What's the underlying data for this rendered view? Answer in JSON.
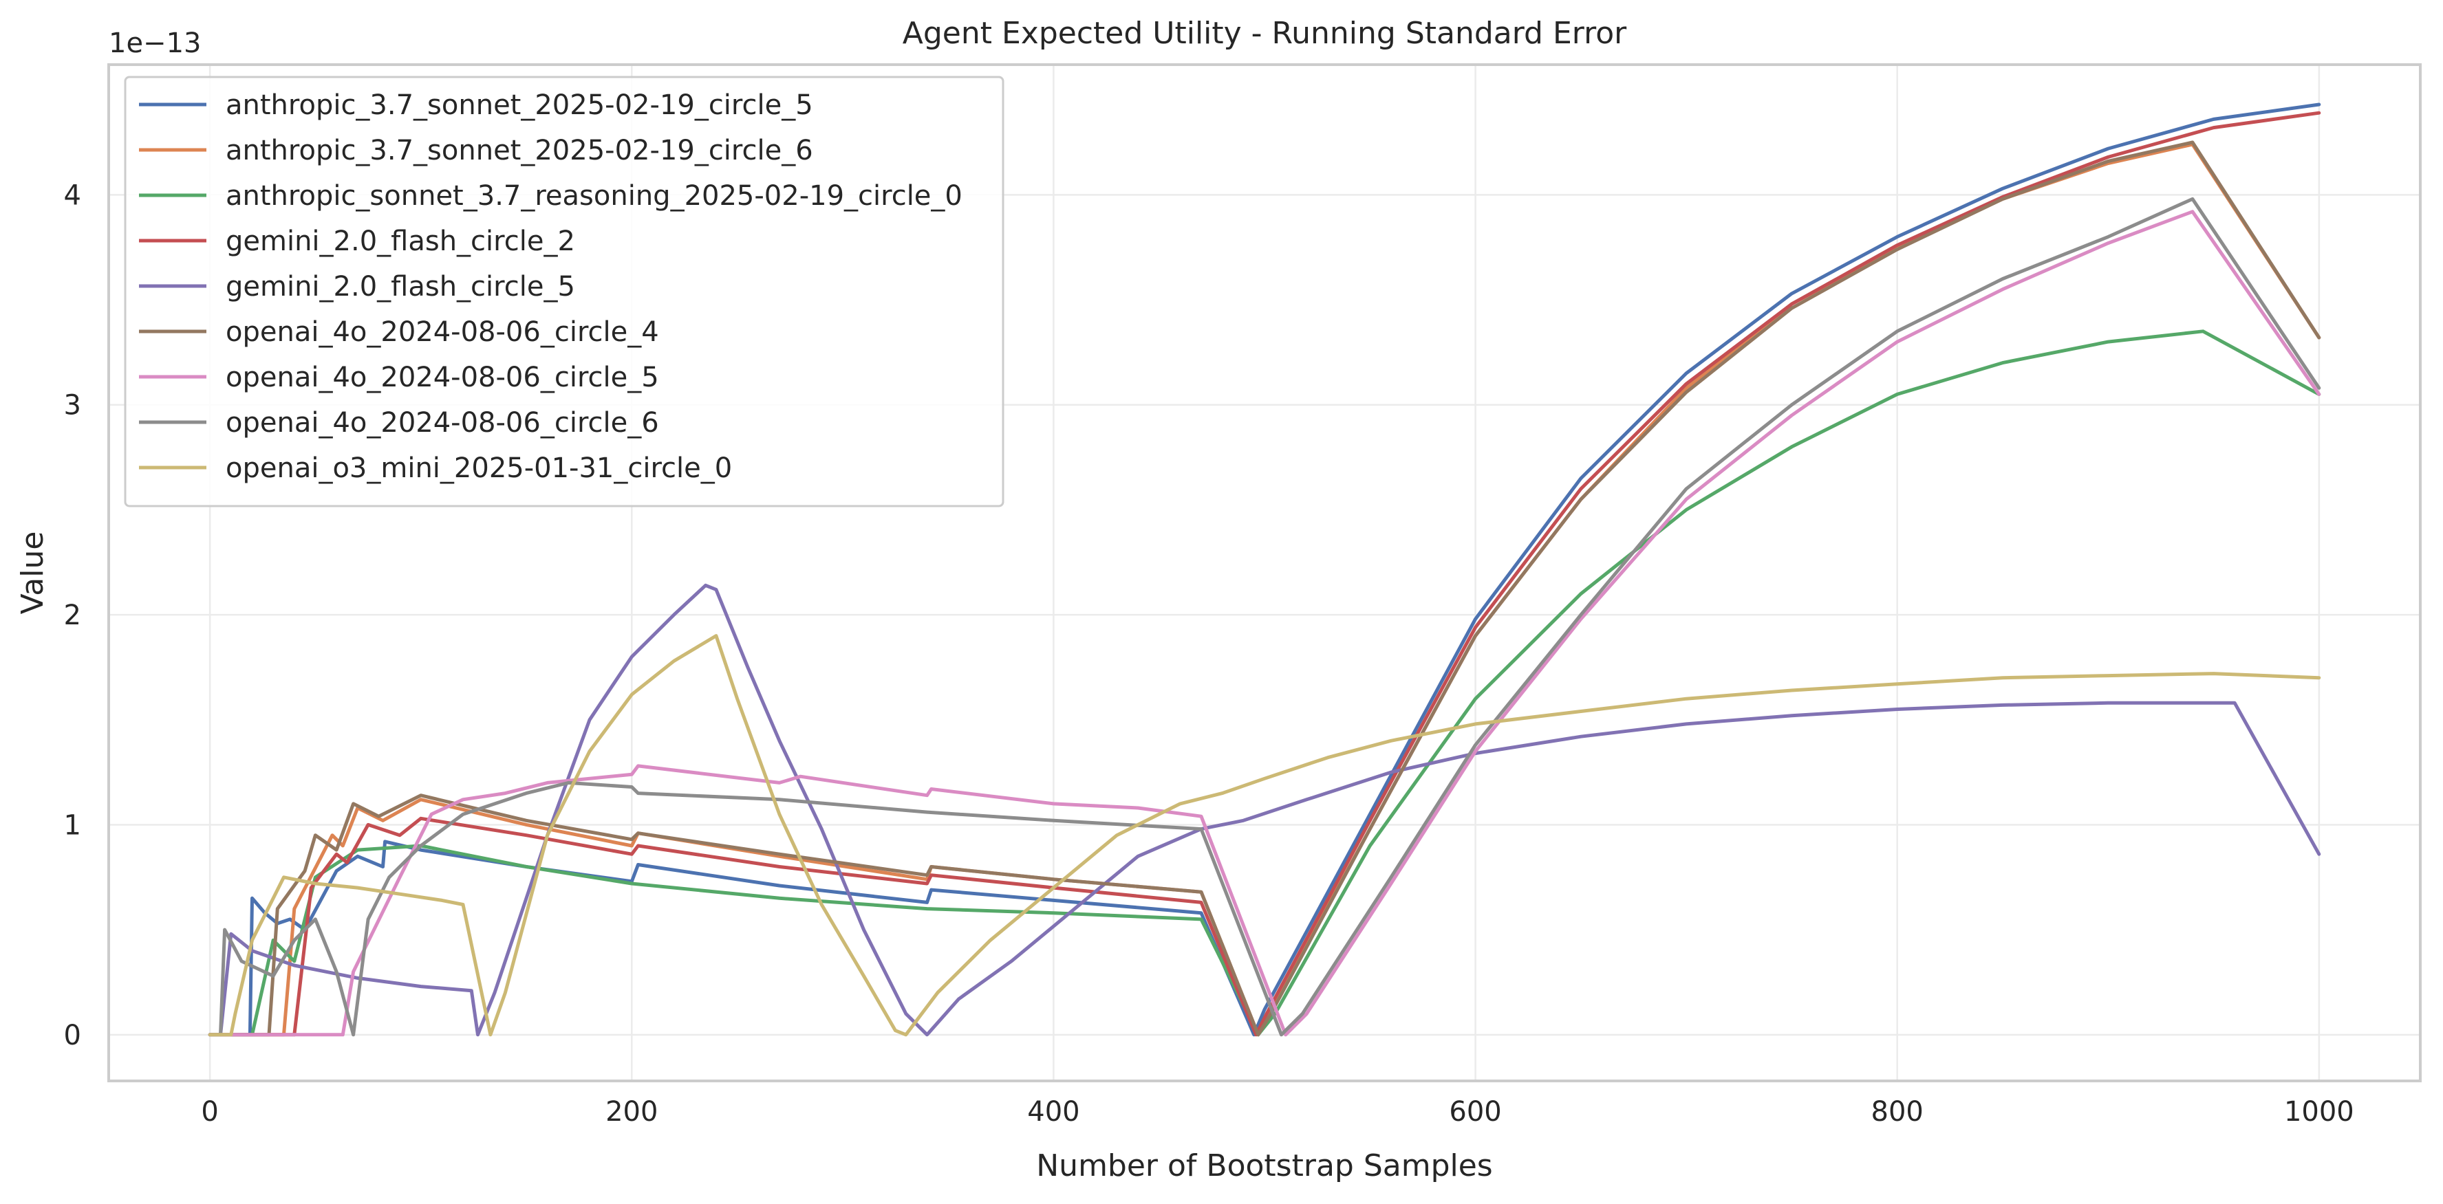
{
  "chart_data": {
    "type": "line",
    "title": "Agent Expected Utility - Running Standard Error",
    "xlabel": "Number of Bootstrap Samples",
    "ylabel": "Value",
    "y_offset_label": "1e−13",
    "xlim": [
      -48,
      1048
    ],
    "ylim": [
      -0.22,
      4.62
    ],
    "x_ticks": [
      0,
      200,
      400,
      600,
      800,
      1000
    ],
    "y_ticks": [
      0,
      1,
      2,
      3,
      4
    ],
    "grid": true,
    "legend_position": "top-left",
    "series": [
      {
        "name": "anthropic_3.7_sonnet_2025-02-19_circle_5",
        "color": "#4c72b0",
        "points": [
          [
            0,
            0
          ],
          [
            19,
            0
          ],
          [
            20,
            0.65
          ],
          [
            26,
            0.58
          ],
          [
            32,
            0.53
          ],
          [
            38,
            0.55
          ],
          [
            45,
            0.5
          ],
          [
            60,
            0.78
          ],
          [
            70,
            0.85
          ],
          [
            82,
            0.8
          ],
          [
            83,
            0.92
          ],
          [
            100,
            0.88
          ],
          [
            150,
            0.8
          ],
          [
            200,
            0.73
          ],
          [
            203,
            0.81
          ],
          [
            270,
            0.71
          ],
          [
            340,
            0.63
          ],
          [
            342,
            0.69
          ],
          [
            400,
            0.64
          ],
          [
            470,
            0.58
          ],
          [
            495,
            0
          ],
          [
            500,
            0.12
          ],
          [
            550,
            1.05
          ],
          [
            600,
            1.98
          ],
          [
            650,
            2.65
          ],
          [
            700,
            3.15
          ],
          [
            750,
            3.53
          ],
          [
            800,
            3.8
          ],
          [
            850,
            4.03
          ],
          [
            900,
            4.22
          ],
          [
            950,
            4.36
          ],
          [
            1000,
            4.43
          ]
        ]
      },
      {
        "name": "anthropic_3.7_sonnet_2025-02-19_circle_6",
        "color": "#dd8452",
        "points": [
          [
            0,
            0
          ],
          [
            35,
            0
          ],
          [
            40,
            0.6
          ],
          [
            58,
            0.95
          ],
          [
            63,
            0.9
          ],
          [
            70,
            1.08
          ],
          [
            82,
            1.02
          ],
          [
            100,
            1.12
          ],
          [
            150,
            1.0
          ],
          [
            200,
            0.9
          ],
          [
            203,
            0.96
          ],
          [
            270,
            0.85
          ],
          [
            340,
            0.74
          ],
          [
            342,
            0.8
          ],
          [
            400,
            0.74
          ],
          [
            470,
            0.68
          ],
          [
            497,
            0
          ],
          [
            502,
            0.1
          ],
          [
            550,
            0.98
          ],
          [
            600,
            1.9
          ],
          [
            650,
            2.55
          ],
          [
            700,
            3.08
          ],
          [
            750,
            3.48
          ],
          [
            800,
            3.75
          ],
          [
            850,
            3.98
          ],
          [
            900,
            4.15
          ],
          [
            940,
            4.24
          ],
          [
            1000,
            3.32
          ]
        ]
      },
      {
        "name": "anthropic_sonnet_3.7_reasoning_2025-02-19_circle_0",
        "color": "#55a868",
        "points": [
          [
            0,
            0
          ],
          [
            20,
            0
          ],
          [
            30,
            0.45
          ],
          [
            40,
            0.35
          ],
          [
            50,
            0.75
          ],
          [
            70,
            0.88
          ],
          [
            100,
            0.9
          ],
          [
            150,
            0.8
          ],
          [
            200,
            0.72
          ],
          [
            270,
            0.65
          ],
          [
            340,
            0.6
          ],
          [
            400,
            0.58
          ],
          [
            470,
            0.55
          ],
          [
            497,
            0
          ],
          [
            505,
            0.1
          ],
          [
            550,
            0.9
          ],
          [
            600,
            1.6
          ],
          [
            650,
            2.1
          ],
          [
            700,
            2.5
          ],
          [
            750,
            2.8
          ],
          [
            800,
            3.05
          ],
          [
            850,
            3.2
          ],
          [
            900,
            3.3
          ],
          [
            945,
            3.35
          ],
          [
            1000,
            3.05
          ]
        ]
      },
      {
        "name": "gemini_2.0_flash_circle_2",
        "color": "#c44e52",
        "points": [
          [
            0,
            0
          ],
          [
            40,
            0
          ],
          [
            48,
            0.7
          ],
          [
            60,
            0.86
          ],
          [
            65,
            0.82
          ],
          [
            75,
            1.0
          ],
          [
            90,
            0.95
          ],
          [
            100,
            1.03
          ],
          [
            150,
            0.95
          ],
          [
            200,
            0.86
          ],
          [
            203,
            0.9
          ],
          [
            270,
            0.8
          ],
          [
            340,
            0.72
          ],
          [
            342,
            0.76
          ],
          [
            400,
            0.7
          ],
          [
            470,
            0.63
          ],
          [
            496,
            0
          ],
          [
            501,
            0.1
          ],
          [
            550,
            1.02
          ],
          [
            600,
            1.94
          ],
          [
            650,
            2.6
          ],
          [
            700,
            3.1
          ],
          [
            750,
            3.48
          ],
          [
            800,
            3.76
          ],
          [
            850,
            3.99
          ],
          [
            900,
            4.18
          ],
          [
            950,
            4.32
          ],
          [
            1000,
            4.39
          ]
        ]
      },
      {
        "name": "gemini_2.0_flash_circle_5",
        "color": "#8172b3",
        "points": [
          [
            0,
            0
          ],
          [
            5,
            0
          ],
          [
            10,
            0.48
          ],
          [
            20,
            0.4
          ],
          [
            40,
            0.33
          ],
          [
            70,
            0.27
          ],
          [
            100,
            0.23
          ],
          [
            124,
            0.21
          ],
          [
            127,
            0
          ],
          [
            135,
            0.2
          ],
          [
            160,
            0.95
          ],
          [
            180,
            1.5
          ],
          [
            200,
            1.8
          ],
          [
            220,
            2.0
          ],
          [
            235,
            2.14
          ],
          [
            240,
            2.12
          ],
          [
            255,
            1.75
          ],
          [
            270,
            1.4
          ],
          [
            290,
            0.98
          ],
          [
            310,
            0.5
          ],
          [
            330,
            0.1
          ],
          [
            340,
            0
          ],
          [
            355,
            0.17
          ],
          [
            380,
            0.35
          ],
          [
            410,
            0.6
          ],
          [
            440,
            0.85
          ],
          [
            470,
            0.98
          ],
          [
            490,
            1.02
          ],
          [
            520,
            1.12
          ],
          [
            560,
            1.25
          ],
          [
            600,
            1.34
          ],
          [
            650,
            1.42
          ],
          [
            700,
            1.48
          ],
          [
            750,
            1.52
          ],
          [
            800,
            1.55
          ],
          [
            850,
            1.57
          ],
          [
            900,
            1.58
          ],
          [
            960,
            1.58
          ],
          [
            1000,
            0.86
          ]
        ]
      },
      {
        "name": "openai_4o_2024-08-06_circle_4",
        "color": "#937860",
        "points": [
          [
            0,
            0
          ],
          [
            28,
            0
          ],
          [
            32,
            0.6
          ],
          [
            45,
            0.78
          ],
          [
            50,
            0.95
          ],
          [
            60,
            0.88
          ],
          [
            68,
            1.1
          ],
          [
            80,
            1.04
          ],
          [
            100,
            1.14
          ],
          [
            150,
            1.02
          ],
          [
            200,
            0.93
          ],
          [
            203,
            0.96
          ],
          [
            270,
            0.86
          ],
          [
            340,
            0.76
          ],
          [
            342,
            0.8
          ],
          [
            400,
            0.74
          ],
          [
            470,
            0.68
          ],
          [
            497,
            0
          ],
          [
            503,
            0.1
          ],
          [
            550,
            0.98
          ],
          [
            600,
            1.9
          ],
          [
            650,
            2.55
          ],
          [
            700,
            3.06
          ],
          [
            750,
            3.46
          ],
          [
            800,
            3.74
          ],
          [
            850,
            3.98
          ],
          [
            900,
            4.16
          ],
          [
            940,
            4.25
          ],
          [
            1000,
            3.32
          ]
        ]
      },
      {
        "name": "openai_4o_2024-08-06_circle_5",
        "color": "#da8bc3",
        "points": [
          [
            0,
            0
          ],
          [
            63,
            0
          ],
          [
            68,
            0.3
          ],
          [
            90,
            0.75
          ],
          [
            105,
            1.05
          ],
          [
            120,
            1.12
          ],
          [
            140,
            1.15
          ],
          [
            160,
            1.2
          ],
          [
            200,
            1.24
          ],
          [
            203,
            1.28
          ],
          [
            270,
            1.2
          ],
          [
            280,
            1.23
          ],
          [
            340,
            1.14
          ],
          [
            342,
            1.17
          ],
          [
            400,
            1.1
          ],
          [
            440,
            1.08
          ],
          [
            470,
            1.04
          ],
          [
            510,
            0
          ],
          [
            520,
            0.1
          ],
          [
            560,
            0.72
          ],
          [
            600,
            1.35
          ],
          [
            650,
            1.98
          ],
          [
            700,
            2.55
          ],
          [
            750,
            2.95
          ],
          [
            800,
            3.3
          ],
          [
            850,
            3.55
          ],
          [
            900,
            3.77
          ],
          [
            940,
            3.92
          ],
          [
            1000,
            3.05
          ]
        ]
      },
      {
        "name": "openai_4o_2024-08-06_circle_6",
        "color": "#8c8c8c",
        "points": [
          [
            0,
            0
          ],
          [
            5,
            0
          ],
          [
            7,
            0.5
          ],
          [
            15,
            0.35
          ],
          [
            30,
            0.28
          ],
          [
            40,
            0.45
          ],
          [
            50,
            0.55
          ],
          [
            60,
            0.3
          ],
          [
            68,
            0
          ],
          [
            75,
            0.55
          ],
          [
            85,
            0.75
          ],
          [
            100,
            0.9
          ],
          [
            120,
            1.05
          ],
          [
            150,
            1.15
          ],
          [
            170,
            1.2
          ],
          [
            200,
            1.18
          ],
          [
            203,
            1.15
          ],
          [
            270,
            1.12
          ],
          [
            340,
            1.06
          ],
          [
            400,
            1.02
          ],
          [
            470,
            0.98
          ],
          [
            508,
            0
          ],
          [
            518,
            0.1
          ],
          [
            560,
            0.75
          ],
          [
            600,
            1.38
          ],
          [
            650,
            2.0
          ],
          [
            700,
            2.6
          ],
          [
            750,
            3.0
          ],
          [
            800,
            3.35
          ],
          [
            850,
            3.6
          ],
          [
            900,
            3.8
          ],
          [
            940,
            3.98
          ],
          [
            1000,
            3.08
          ]
        ]
      },
      {
        "name": "openai_o3_mini_2025-01-31_circle_0",
        "color": "#ccb974",
        "points": [
          [
            0,
            0
          ],
          [
            10,
            0
          ],
          [
            12,
            0.1
          ],
          [
            20,
            0.45
          ],
          [
            35,
            0.75
          ],
          [
            50,
            0.72
          ],
          [
            70,
            0.7
          ],
          [
            90,
            0.67
          ],
          [
            110,
            0.64
          ],
          [
            120,
            0.62
          ],
          [
            133,
            0
          ],
          [
            140,
            0.2
          ],
          [
            160,
            0.95
          ],
          [
            180,
            1.35
          ],
          [
            200,
            1.62
          ],
          [
            220,
            1.78
          ],
          [
            240,
            1.9
          ],
          [
            250,
            1.6
          ],
          [
            270,
            1.05
          ],
          [
            290,
            0.62
          ],
          [
            310,
            0.28
          ],
          [
            325,
            0.02
          ],
          [
            330,
            0
          ],
          [
            345,
            0.2
          ],
          [
            370,
            0.45
          ],
          [
            400,
            0.7
          ],
          [
            430,
            0.95
          ],
          [
            460,
            1.1
          ],
          [
            480,
            1.15
          ],
          [
            500,
            1.22
          ],
          [
            530,
            1.32
          ],
          [
            560,
            1.4
          ],
          [
            600,
            1.48
          ],
          [
            650,
            1.54
          ],
          [
            700,
            1.6
          ],
          [
            750,
            1.64
          ],
          [
            800,
            1.67
          ],
          [
            850,
            1.7
          ],
          [
            900,
            1.71
          ],
          [
            950,
            1.72
          ],
          [
            1000,
            1.7
          ]
        ]
      }
    ]
  }
}
